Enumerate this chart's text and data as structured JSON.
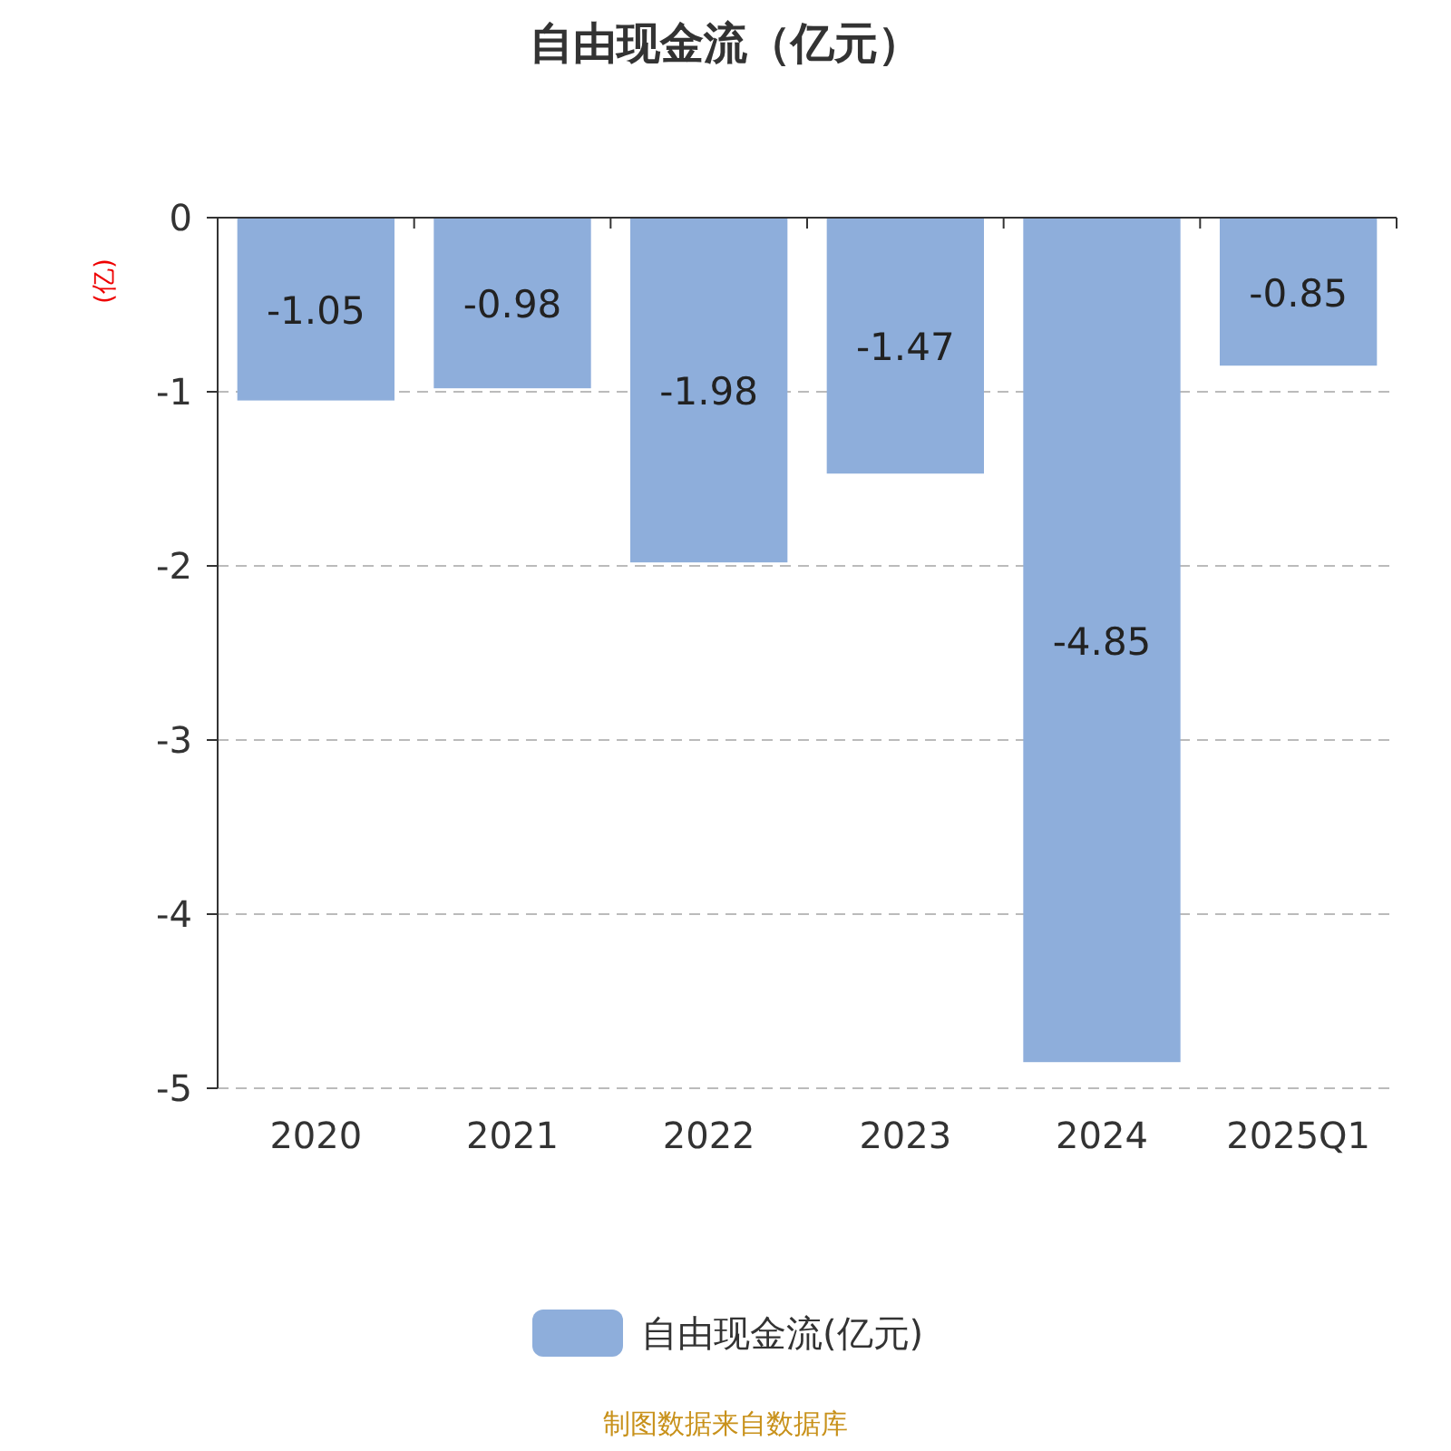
{
  "chart_data": {
    "type": "bar",
    "title": "自由现金流（亿元）",
    "ylabel": "(亿)",
    "categories": [
      "2020",
      "2021",
      "2022",
      "2023",
      "2024",
      "2025Q1"
    ],
    "series": [
      {
        "name": "自由现金流(亿元)",
        "color": "#8eaedb",
        "values": [
          -1.05,
          -0.98,
          -1.98,
          -1.47,
          -4.85,
          -0.85
        ]
      }
    ],
    "ylim": [
      -5,
      0
    ],
    "yticks": [
      0,
      -1,
      -2,
      -3,
      -4,
      -5
    ],
    "grid": "y",
    "legend": "bottom",
    "data_labels": true,
    "annotations": [
      "制图数据来自数据库"
    ]
  }
}
